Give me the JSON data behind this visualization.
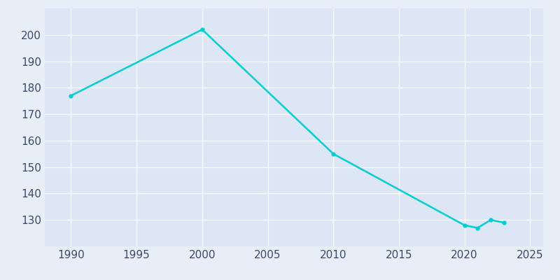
{
  "years": [
    1990,
    2000,
    2010,
    2020,
    2021,
    2022,
    2023
  ],
  "population": [
    177,
    202,
    155,
    128,
    127,
    130,
    129
  ],
  "line_color": "#00CED1",
  "bg_color": "#e8eef7",
  "plot_bg_color": "#dce6f5",
  "xlabel": "",
  "ylabel": "",
  "xlim": [
    1988,
    2026
  ],
  "ylim": [
    120,
    210
  ],
  "yticks": [
    130,
    140,
    150,
    160,
    170,
    180,
    190,
    200
  ],
  "xticks": [
    1990,
    1995,
    2000,
    2005,
    2010,
    2015,
    2020,
    2025
  ],
  "grid_color": "#ffffff",
  "line_width": 1.8,
  "marker": "o",
  "marker_size": 3.5,
  "tick_label_color": "#3a4a6b",
  "tick_label_size": 11
}
